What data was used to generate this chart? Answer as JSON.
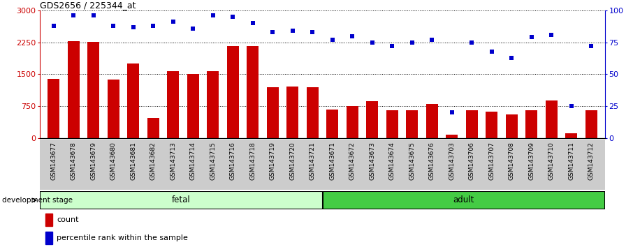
{
  "title": "GDS2656 / 225344_at",
  "categories": [
    "GSM143677",
    "GSM143678",
    "GSM143679",
    "GSM143680",
    "GSM143681",
    "GSM143682",
    "GSM143713",
    "GSM143714",
    "GSM143715",
    "GSM143716",
    "GSM143718",
    "GSM143719",
    "GSM143720",
    "GSM143721",
    "GSM143671",
    "GSM143672",
    "GSM143673",
    "GSM143674",
    "GSM143675",
    "GSM143676",
    "GSM143703",
    "GSM143706",
    "GSM143707",
    "GSM143708",
    "GSM143709",
    "GSM143710",
    "GSM143711",
    "GSM143712"
  ],
  "bar_values": [
    1400,
    2280,
    2260,
    1380,
    1750,
    480,
    1580,
    1510,
    1580,
    2170,
    2170,
    1200,
    1220,
    1200,
    680,
    750,
    870,
    660,
    660,
    800,
    80,
    660,
    620,
    560,
    650,
    880,
    120,
    660
  ],
  "percentile_values": [
    88,
    96,
    96,
    88,
    87,
    88,
    91,
    86,
    96,
    95,
    90,
    83,
    84,
    83,
    77,
    80,
    75,
    72,
    75,
    77,
    20,
    75,
    68,
    63,
    79,
    81,
    25,
    72
  ],
  "fetal_count": 14,
  "adult_count": 14,
  "bar_color": "#cc0000",
  "dot_color": "#0000cc",
  "fetal_bg": "#ccffcc",
  "adult_bg": "#44cc44",
  "tick_bg": "#cccccc",
  "ylim_left": [
    0,
    3000
  ],
  "ylim_right": [
    0,
    100
  ],
  "yticks_left": [
    0,
    750,
    1500,
    2250,
    3000
  ],
  "yticks_right": [
    0,
    25,
    50,
    75,
    100
  ],
  "bar_width": 0.6
}
